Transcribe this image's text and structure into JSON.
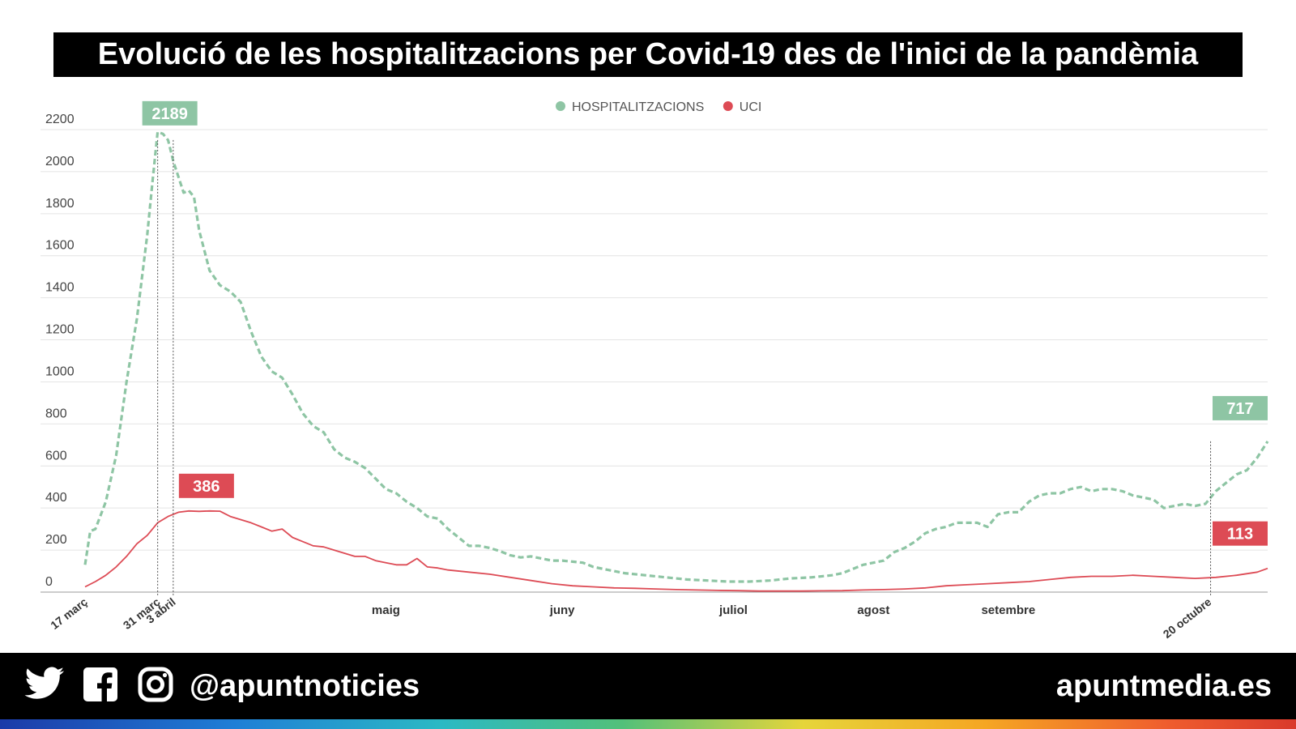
{
  "title": "Evolució de les hospitalitzacions per Covid-19 des de l'inici de la pandèmia",
  "colors": {
    "hosp": "#8ec5a4",
    "uci": "#dd4b55",
    "grid": "#e4e4e4",
    "axis": "#444444"
  },
  "chart_data": {
    "type": "line",
    "title": "Evolució de les hospitalitzacions per Covid-19 des de l'inici de la pandèmia",
    "ylim": [
      0,
      2200
    ],
    "yticks": [
      0,
      200,
      400,
      600,
      800,
      1000,
      1200,
      1400,
      1600,
      1800,
      2000,
      2200
    ],
    "x_range_days": [
      0,
      217
    ],
    "legend_position": "top-center",
    "x_ticks": [
      {
        "label": "17 març",
        "day": 0,
        "rotated": true
      },
      {
        "label": "31 març",
        "day": 14,
        "rotated": true
      },
      {
        "label": "3 abril",
        "day": 17,
        "rotated": true
      },
      {
        "label": "maig",
        "day": 58,
        "rotated": false
      },
      {
        "label": "juny",
        "day": 92,
        "rotated": false
      },
      {
        "label": "juliol",
        "day": 125,
        "rotated": false
      },
      {
        "label": "agost",
        "day": 152,
        "rotated": false
      },
      {
        "label": "setembre",
        "day": 178,
        "rotated": false
      },
      {
        "label": "20 octubre",
        "day": 217,
        "rotated": true
      }
    ],
    "series": [
      {
        "name": "HOSPITALITZACIONS",
        "style": "dashed",
        "points": [
          [
            0,
            130
          ],
          [
            1,
            290
          ],
          [
            2,
            300
          ],
          [
            4,
            430
          ],
          [
            6,
            650
          ],
          [
            8,
            1000
          ],
          [
            10,
            1300
          ],
          [
            11,
            1500
          ],
          [
            12,
            1700
          ],
          [
            13,
            1950
          ],
          [
            14,
            2189
          ],
          [
            15,
            2180
          ],
          [
            16,
            2150
          ],
          [
            17,
            2050
          ],
          [
            19,
            1900
          ],
          [
            20,
            1910
          ],
          [
            21,
            1880
          ],
          [
            22,
            1720
          ],
          [
            24,
            1530
          ],
          [
            26,
            1460
          ],
          [
            28,
            1430
          ],
          [
            30,
            1380
          ],
          [
            32,
            1240
          ],
          [
            34,
            1120
          ],
          [
            36,
            1050
          ],
          [
            38,
            1020
          ],
          [
            40,
            940
          ],
          [
            42,
            850
          ],
          [
            44,
            790
          ],
          [
            46,
            760
          ],
          [
            48,
            680
          ],
          [
            50,
            640
          ],
          [
            52,
            620
          ],
          [
            54,
            590
          ],
          [
            56,
            540
          ],
          [
            58,
            490
          ],
          [
            60,
            470
          ],
          [
            62,
            430
          ],
          [
            64,
            400
          ],
          [
            66,
            360
          ],
          [
            68,
            350
          ],
          [
            70,
            300
          ],
          [
            72,
            260
          ],
          [
            74,
            220
          ],
          [
            76,
            220
          ],
          [
            78,
            210
          ],
          [
            80,
            195
          ],
          [
            82,
            175
          ],
          [
            84,
            165
          ],
          [
            86,
            170
          ],
          [
            88,
            160
          ],
          [
            90,
            150
          ],
          [
            92,
            150
          ],
          [
            94,
            145
          ],
          [
            96,
            140
          ],
          [
            98,
            120
          ],
          [
            100,
            110
          ],
          [
            104,
            90
          ],
          [
            108,
            80
          ],
          [
            112,
            70
          ],
          [
            116,
            60
          ],
          [
            120,
            55
          ],
          [
            124,
            50
          ],
          [
            128,
            50
          ],
          [
            132,
            55
          ],
          [
            136,
            65
          ],
          [
            140,
            70
          ],
          [
            144,
            80
          ],
          [
            146,
            90
          ],
          [
            148,
            110
          ],
          [
            150,
            130
          ],
          [
            152,
            140
          ],
          [
            154,
            150
          ],
          [
            156,
            190
          ],
          [
            158,
            210
          ],
          [
            160,
            240
          ],
          [
            162,
            280
          ],
          [
            164,
            300
          ],
          [
            166,
            310
          ],
          [
            168,
            330
          ],
          [
            170,
            330
          ],
          [
            172,
            330
          ],
          [
            174,
            310
          ],
          [
            176,
            370
          ],
          [
            178,
            380
          ],
          [
            180,
            380
          ],
          [
            182,
            430
          ],
          [
            184,
            460
          ],
          [
            186,
            470
          ],
          [
            188,
            470
          ],
          [
            190,
            490
          ],
          [
            192,
            500
          ],
          [
            194,
            480
          ],
          [
            196,
            490
          ],
          [
            198,
            490
          ],
          [
            200,
            480
          ],
          [
            202,
            460
          ],
          [
            204,
            450
          ],
          [
            206,
            440
          ],
          [
            208,
            400
          ],
          [
            210,
            410
          ],
          [
            212,
            420
          ],
          [
            214,
            410
          ],
          [
            216,
            420
          ],
          [
            218,
            480
          ],
          [
            220,
            520
          ],
          [
            222,
            560
          ],
          [
            224,
            580
          ],
          [
            226,
            640
          ],
          [
            228,
            717
          ]
        ]
      },
      {
        "name": "UCI",
        "style": "solid",
        "points": [
          [
            0,
            25
          ],
          [
            2,
            50
          ],
          [
            4,
            80
          ],
          [
            6,
            120
          ],
          [
            8,
            170
          ],
          [
            10,
            230
          ],
          [
            12,
            270
          ],
          [
            14,
            330
          ],
          [
            16,
            360
          ],
          [
            18,
            380
          ],
          [
            20,
            386
          ],
          [
            22,
            384
          ],
          [
            24,
            386
          ],
          [
            26,
            385
          ],
          [
            28,
            360
          ],
          [
            30,
            345
          ],
          [
            32,
            330
          ],
          [
            34,
            310
          ],
          [
            36,
            290
          ],
          [
            38,
            300
          ],
          [
            40,
            260
          ],
          [
            42,
            240
          ],
          [
            44,
            220
          ],
          [
            46,
            215
          ],
          [
            48,
            200
          ],
          [
            50,
            185
          ],
          [
            52,
            170
          ],
          [
            54,
            170
          ],
          [
            56,
            150
          ],
          [
            58,
            140
          ],
          [
            60,
            130
          ],
          [
            62,
            130
          ],
          [
            64,
            160
          ],
          [
            66,
            120
          ],
          [
            68,
            115
          ],
          [
            70,
            105
          ],
          [
            74,
            95
          ],
          [
            78,
            85
          ],
          [
            82,
            70
          ],
          [
            86,
            55
          ],
          [
            90,
            40
          ],
          [
            94,
            30
          ],
          [
            98,
            25
          ],
          [
            102,
            20
          ],
          [
            106,
            18
          ],
          [
            110,
            15
          ],
          [
            114,
            12
          ],
          [
            118,
            10
          ],
          [
            122,
            8
          ],
          [
            126,
            7
          ],
          [
            130,
            5
          ],
          [
            134,
            5
          ],
          [
            138,
            5
          ],
          [
            142,
            6
          ],
          [
            146,
            7
          ],
          [
            150,
            10
          ],
          [
            154,
            12
          ],
          [
            158,
            15
          ],
          [
            162,
            20
          ],
          [
            166,
            30
          ],
          [
            170,
            35
          ],
          [
            174,
            40
          ],
          [
            178,
            45
          ],
          [
            182,
            50
          ],
          [
            186,
            60
          ],
          [
            190,
            70
          ],
          [
            194,
            75
          ],
          [
            198,
            75
          ],
          [
            202,
            80
          ],
          [
            206,
            75
          ],
          [
            210,
            70
          ],
          [
            214,
            65
          ],
          [
            218,
            70
          ],
          [
            222,
            80
          ],
          [
            226,
            95
          ],
          [
            228,
            113
          ]
        ]
      }
    ],
    "annotations": [
      {
        "series": "HOSPITALITZACIONS",
        "day": 14,
        "label": "2189"
      },
      {
        "series": "UCI",
        "day": 17,
        "label": "386"
      },
      {
        "series": "HOSPITALITZACIONS",
        "day": 228,
        "label": "717"
      },
      {
        "series": "UCI",
        "day": 228,
        "label": "113"
      }
    ],
    "legend": [
      {
        "name": "HOSPITALITZACIONS",
        "color": "#8ec5a4"
      },
      {
        "name": "UCI",
        "color": "#dd4b55"
      }
    ]
  },
  "footer": {
    "handle": "@apuntnoticies",
    "site": "apuntmedia.es",
    "icons": [
      "twitter-icon",
      "facebook-icon",
      "instagram-icon"
    ]
  }
}
